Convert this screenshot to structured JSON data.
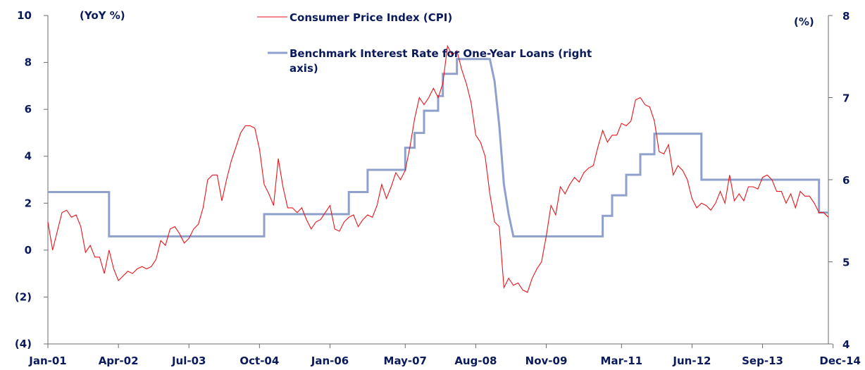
{
  "chart_data": {
    "type": "line",
    "left_unit": "(YoY %)",
    "right_unit": "(%)",
    "x_tick_labels": [
      "Jan-01",
      "Apr-02",
      "Jul-03",
      "Oct-04",
      "Jan-06",
      "May-07",
      "Aug-08",
      "Nov-09",
      "Mar-11",
      "Jun-12",
      "Sep-13",
      "Dec-14"
    ],
    "x_tick_index": [
      0,
      15,
      30,
      45,
      60,
      76,
      91,
      106,
      122,
      137,
      152,
      167
    ],
    "y_left": {
      "min": -4,
      "max": 10,
      "step": 2,
      "tick_labels": [
        "(4)",
        "(2)",
        "0",
        "2",
        "4",
        "6",
        "8",
        "10"
      ]
    },
    "y_right": {
      "min": 4,
      "max": 8,
      "step": 1,
      "tick_labels": [
        "4",
        "5",
        "6",
        "7",
        "8"
      ]
    },
    "grid": false,
    "series": [
      {
        "name": "Consumer Price Index (CPI)",
        "axis": "left",
        "color": "#e8141b",
        "start": "Jan-01",
        "end": "Dec-14",
        "values": [
          1.2,
          0,
          0.8,
          1.6,
          1.7,
          1.4,
          1.5,
          1.0,
          -0.1,
          0.2,
          -0.3,
          -0.3,
          -1.0,
          0,
          -0.8,
          -1.3,
          -1.1,
          -0.9,
          -1.0,
          -0.8,
          -0.7,
          -0.8,
          -0.7,
          -0.4,
          0.4,
          0.2,
          0.9,
          1.0,
          0.7,
          0.3,
          0.5,
          0.9,
          1.1,
          1.8,
          3.0,
          3.2,
          3.2,
          2.1,
          3.0,
          3.8,
          4.4,
          5.0,
          5.3,
          5.3,
          5.2,
          4.3,
          2.8,
          2.4,
          1.9,
          3.9,
          2.7,
          1.8,
          1.8,
          1.6,
          1.8,
          1.3,
          0.9,
          1.2,
          1.3,
          1.6,
          1.9,
          0.9,
          0.8,
          1.2,
          1.4,
          1.5,
          1.0,
          1.3,
          1.5,
          1.4,
          1.9,
          2.8,
          2.2,
          2.7,
          3.3,
          3.0,
          3.4,
          4.4,
          5.6,
          6.5,
          6.2,
          6.5,
          6.9,
          6.5,
          7.1,
          8.7,
          8.3,
          8.5,
          7.7,
          7.1,
          6.3,
          4.9,
          4.6,
          4.0,
          2.4,
          1.2,
          1.0,
          -1.6,
          -1.2,
          -1.5,
          -1.4,
          -1.7,
          -1.8,
          -1.2,
          -0.8,
          -0.5,
          0.6,
          1.9,
          1.5,
          2.7,
          2.4,
          2.8,
          3.1,
          2.9,
          3.3,
          3.5,
          3.6,
          4.4,
          5.1,
          4.6,
          4.9,
          4.9,
          5.4,
          5.3,
          5.5,
          6.4,
          6.5,
          6.2,
          6.1,
          5.5,
          4.2,
          4.1,
          4.5,
          3.2,
          3.6,
          3.4,
          3.0,
          2.2,
          1.8,
          2.0,
          1.9,
          1.7,
          2.0,
          2.5,
          2.0,
          3.2,
          2.1,
          2.4,
          2.1,
          2.7,
          2.7,
          2.6,
          3.1,
          3.2,
          3.0,
          2.5,
          2.5,
          2.0,
          2.4,
          1.8,
          2.5,
          2.3,
          2.3,
          2.0,
          1.6,
          1.6,
          1.4
        ]
      },
      {
        "name": "Benchmark Interest Rate for One-Year Loans (right axis)",
        "axis": "right",
        "color": "#8fa0cc",
        "start": "Jan-01",
        "end": "Dec-14",
        "points": [
          [
            0,
            5.85
          ],
          [
            13,
            5.85
          ],
          [
            13,
            5.31
          ],
          [
            46,
            5.31
          ],
          [
            46,
            5.58
          ],
          [
            64,
            5.58
          ],
          [
            64,
            5.85
          ],
          [
            68,
            5.85
          ],
          [
            68,
            6.12
          ],
          [
            76,
            6.12
          ],
          [
            76,
            6.39
          ],
          [
            78,
            6.39
          ],
          [
            78,
            6.57
          ],
          [
            80,
            6.57
          ],
          [
            80,
            6.84
          ],
          [
            83,
            6.84
          ],
          [
            83,
            7.02
          ],
          [
            84,
            7.02
          ],
          [
            84,
            7.29
          ],
          [
            87,
            7.29
          ],
          [
            87,
            7.47
          ],
          [
            94,
            7.47
          ],
          [
            95,
            7.2
          ],
          [
            96,
            6.66
          ],
          [
            97,
            5.94
          ],
          [
            98,
            5.58
          ],
          [
            99,
            5.31
          ],
          [
            114,
            5.31
          ],
          [
            114,
            5.31
          ],
          [
            118,
            5.31
          ],
          [
            118,
            5.56
          ],
          [
            120,
            5.56
          ],
          [
            120,
            5.81
          ],
          [
            123,
            5.81
          ],
          [
            123,
            6.06
          ],
          [
            126,
            6.06
          ],
          [
            126,
            6.31
          ],
          [
            129,
            6.31
          ],
          [
            129,
            6.56
          ],
          [
            139,
            6.56
          ],
          [
            139,
            6.0
          ],
          [
            164,
            6.0
          ],
          [
            164,
            5.6
          ],
          [
            166,
            5.6
          ]
        ]
      }
    ]
  }
}
